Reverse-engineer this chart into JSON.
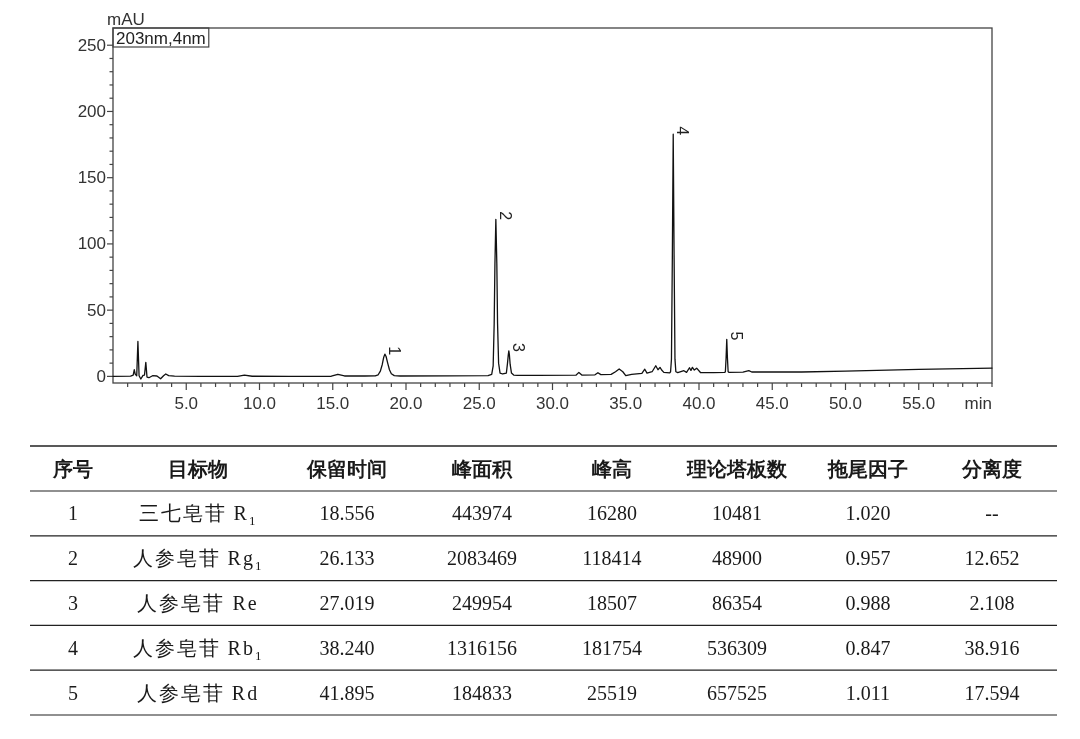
{
  "chart_data": [
    {
      "type": "line",
      "xlabel": "min",
      "ylabel": "mAU",
      "color": "#111111",
      "annotations": [
        "203nm,4nm",
        {
          "text": "1",
          "x": 18.556,
          "y": 16.8
        },
        {
          "text": "2",
          "x": 26.133,
          "y": 118.6
        },
        {
          "text": "3",
          "x": 27.019,
          "y": 19.2
        },
        {
          "text": "4",
          "x": 38.24,
          "y": 182.8
        },
        {
          "text": "5",
          "x": 41.895,
          "y": 28.0
        }
      ],
      "x": [
        0,
        1.2,
        1.38,
        1.45,
        1.52,
        1.62,
        1.7,
        1.78,
        1.9,
        2.05,
        2.15,
        2.24,
        2.32,
        2.45,
        2.7,
        3.0,
        3.25,
        3.45,
        3.6,
        3.8,
        4.2,
        6,
        8.5,
        8.97,
        9.5,
        12,
        14.9,
        15.35,
        15.8,
        17.2,
        17.9,
        18.1,
        18.25,
        18.38,
        18.48,
        18.556,
        18.64,
        18.75,
        18.87,
        19.0,
        19.2,
        19.6,
        23,
        25.6,
        25.85,
        25.95,
        26.02,
        26.07,
        26.133,
        26.2,
        26.25,
        26.32,
        26.42,
        26.6,
        26.85,
        26.93,
        26.98,
        27.019,
        27.06,
        27.11,
        27.2,
        27.35,
        27.6,
        29,
        31.6,
        31.8,
        32.0,
        32.9,
        33.1,
        33.3,
        34.0,
        34.3,
        34.55,
        34.8,
        35.0,
        35.4,
        36.1,
        36.3,
        36.45,
        36.8,
        37.05,
        37.2,
        37.34,
        37.45,
        37.6,
        38.0,
        38.06,
        38.12,
        38.18,
        38.24,
        38.3,
        38.36,
        38.42,
        38.55,
        38.97,
        39.15,
        39.35,
        39.45,
        39.55,
        39.68,
        39.84,
        40.1,
        41.0,
        41.75,
        41.8,
        41.85,
        41.895,
        41.94,
        41.99,
        42.05,
        43.0,
        43.4,
        43.6,
        47,
        50,
        55,
        60
      ],
      "values": [
        0,
        0.2,
        1.0,
        5.0,
        1.5,
        0.5,
        26.4,
        0.5,
        -2.0,
        0.8,
        1.0,
        10.6,
        -0.5,
        -1.0,
        0.5,
        0.3,
        -1.8,
        0.5,
        1.8,
        0.6,
        0.2,
        0,
        0,
        1.0,
        0.1,
        0,
        0.1,
        1.6,
        0.3,
        0.3,
        0.4,
        1.2,
        4.0,
        9.0,
        14.5,
        16.8,
        15.0,
        10.0,
        5.0,
        2.0,
        0.6,
        0.3,
        0.4,
        0.5,
        1.5,
        8,
        40,
        85,
        118.6,
        85,
        40,
        10,
        2.5,
        1.8,
        2.5,
        10,
        16,
        19.2,
        16,
        9,
        2.5,
        1.0,
        0.8,
        0.7,
        0.9,
        3.0,
        1.0,
        1.2,
        2.8,
        1.3,
        1.5,
        3.5,
        5.6,
        3.5,
        0.6,
        1.5,
        2.2,
        5.4,
        2.5,
        3.5,
        8.0,
        5.0,
        6.8,
        4.8,
        3.0,
        2.6,
        3.5,
        13,
        90,
        182.8,
        90,
        13,
        3.5,
        2.8,
        4.3,
        3.0,
        6.5,
        4.5,
        6.8,
        4.8,
        6.2,
        2.9,
        2.8,
        3.0,
        3.5,
        14,
        28.0,
        14,
        3.5,
        3.0,
        3.2,
        4.3,
        3.3,
        3.3,
        4.0,
        5.3,
        6.3
      ],
      "xlim": [
        0,
        60
      ],
      "ylim": [
        -5,
        263
      ],
      "xticks": [
        {
          "value": 1,
          "label": null
        },
        {
          "value": 2,
          "label": null
        },
        {
          "value": 3,
          "label": null
        },
        {
          "value": 4,
          "label": null
        },
        {
          "value": 5,
          "label": "5.0"
        },
        {
          "value": 6,
          "label": null
        },
        {
          "value": 7,
          "label": null
        },
        {
          "value": 8,
          "label": null
        },
        {
          "value": 9,
          "label": null
        },
        {
          "value": 10,
          "label": "10.0"
        },
        {
          "value": 11,
          "label": null
        },
        {
          "value": 12,
          "label": null
        },
        {
          "value": 13,
          "label": null
        },
        {
          "value": 14,
          "label": null
        },
        {
          "value": 15,
          "label": "15.0"
        },
        {
          "value": 16,
          "label": null
        },
        {
          "value": 17,
          "label": null
        },
        {
          "value": 18,
          "label": null
        },
        {
          "value": 19,
          "label": null
        },
        {
          "value": 20,
          "label": "20.0"
        },
        {
          "value": 21,
          "label": null
        },
        {
          "value": 22,
          "label": null
        },
        {
          "value": 23,
          "label": null
        },
        {
          "value": 24,
          "label": null
        },
        {
          "value": 25,
          "label": "25.0"
        },
        {
          "value": 26,
          "label": null
        },
        {
          "value": 27,
          "label": null
        },
        {
          "value": 28,
          "label": null
        },
        {
          "value": 29,
          "label": null
        },
        {
          "value": 30,
          "label": "30.0"
        },
        {
          "value": 31,
          "label": null
        },
        {
          "value": 32,
          "label": null
        },
        {
          "value": 33,
          "label": null
        },
        {
          "value": 34,
          "label": null
        },
        {
          "value": 35,
          "label": "35.0"
        },
        {
          "value": 36,
          "label": null
        },
        {
          "value": 37,
          "label": null
        },
        {
          "value": 38,
          "label": null
        },
        {
          "value": 39,
          "label": null
        },
        {
          "value": 40,
          "label": "40.0"
        },
        {
          "value": 41,
          "label": null
        },
        {
          "value": 42,
          "label": null
        },
        {
          "value": 43,
          "label": null
        },
        {
          "value": 44,
          "label": null
        },
        {
          "value": 45,
          "label": "45.0"
        },
        {
          "value": 46,
          "label": null
        },
        {
          "value": 47,
          "label": null
        },
        {
          "value": 48,
          "label": null
        },
        {
          "value": 49,
          "label": null
        },
        {
          "value": 50,
          "label": "50.0"
        },
        {
          "value": 51,
          "label": null
        },
        {
          "value": 52,
          "label": null
        },
        {
          "value": 53,
          "label": null
        },
        {
          "value": 54,
          "label": null
        },
        {
          "value": 55,
          "label": "55.0"
        },
        {
          "value": 56,
          "label": null
        },
        {
          "value": 57,
          "label": null
        },
        {
          "value": 58,
          "label": null
        },
        {
          "value": 59,
          "label": null
        },
        {
          "value": 60,
          "label": null
        }
      ],
      "yticks": [
        0,
        {
          "value": 10,
          "label": null
        },
        {
          "value": 20,
          "label": null
        },
        {
          "value": 30,
          "label": null
        },
        {
          "value": 40,
          "label": null
        },
        50,
        {
          "value": 60,
          "label": null
        },
        {
          "value": 70,
          "label": null
        },
        {
          "value": 80,
          "label": null
        },
        {
          "value": 90,
          "label": null
        },
        100,
        {
          "value": 110,
          "label": null
        },
        {
          "value": 120,
          "label": null
        },
        {
          "value": 130,
          "label": null
        },
        {
          "value": 140,
          "label": null
        },
        150,
        {
          "value": 160,
          "label": null
        },
        {
          "value": 170,
          "label": null
        },
        {
          "value": 180,
          "label": null
        },
        {
          "value": 190,
          "label": null
        },
        200,
        {
          "value": 210,
          "label": null
        },
        {
          "value": 220,
          "label": null
        },
        {
          "value": 230,
          "label": null
        },
        {
          "value": 240,
          "label": null
        },
        250
      ]
    },
    {
      "type": "heatmap",
      "ylabel": "序号",
      "categories": [
        "目标物",
        "保留时间",
        "峰面积",
        "峰高",
        "理论塔板数",
        "拖尾因子",
        "分离度"
      ],
      "y_categories": [
        "1",
        "2",
        "3",
        "4",
        "5"
      ],
      "cells": [
        [
          null,
          null,
          null,
          null,
          null,
          null,
          null
        ],
        [
          null,
          null,
          null,
          null,
          null,
          null,
          null
        ],
        [
          null,
          null,
          null,
          null,
          null,
          null,
          null
        ],
        [
          null,
          null,
          null,
          null,
          null,
          null,
          null
        ],
        [
          null,
          null,
          null,
          null,
          null,
          null,
          null
        ]
      ],
      "cell_labels": [
        [
          "三七皂苷 R$_{1}$",
          "18.556",
          "443974",
          "16280",
          "10481",
          "1.020",
          "--"
        ],
        [
          "人参皂苷 Rg$_{1}$",
          "26.133",
          "2083469",
          "118414",
          "48900",
          "0.957",
          "12.652"
        ],
        [
          "人参皂苷 Re",
          "27.019",
          "249954",
          "18507",
          "86354",
          "0.988",
          "2.108"
        ],
        [
          "人参皂苷 Rb$_{1}$",
          "38.240",
          "1316156",
          "181754",
          "536309",
          "0.847",
          "38.916"
        ],
        [
          "人参皂苷 Rd",
          "41.895",
          "184833",
          "25519",
          "657525",
          "1.011",
          "17.594"
        ]
      ]
    }
  ]
}
